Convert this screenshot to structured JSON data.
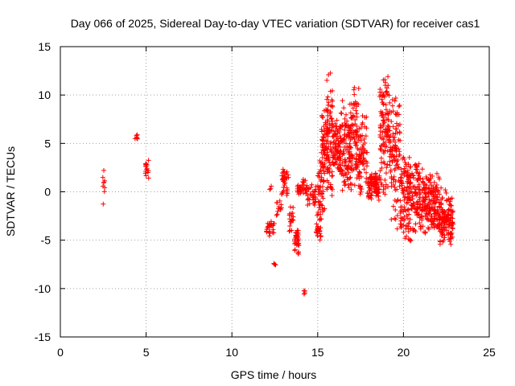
{
  "chart_data": {
    "type": "scatter",
    "title": "Day 066 of 2025, Sidereal Day-to-day VTEC variation (SDTVAR) for receiver cas1",
    "xlabel": "GPS time / hours",
    "ylabel": "SDTVAR / TECUs",
    "xlim": [
      0,
      25
    ],
    "ylim": [
      -15,
      15
    ],
    "xticks": [
      0,
      5,
      10,
      15,
      20,
      25
    ],
    "yticks": [
      -15,
      -10,
      -5,
      0,
      5,
      10,
      15
    ],
    "grid": true,
    "marker": "plus",
    "color": "#ff0000",
    "clusters": [
      {
        "name": "c1",
        "x_range": [
          2.45,
          2.6
        ],
        "y_range": [
          -1.9,
          3.2
        ],
        "count": 9
      },
      {
        "name": "c2",
        "x_range": [
          4.35,
          4.5
        ],
        "y_range": [
          5.3,
          6.0
        ],
        "count": 6
      },
      {
        "name": "c3",
        "x_range": [
          4.95,
          5.15
        ],
        "y_range": [
          1.2,
          3.8
        ],
        "count": 16
      },
      {
        "name": "c4",
        "x_range": [
          12.0,
          12.5
        ],
        "y_range": [
          -4.6,
          -3.0
        ],
        "count": 25
      },
      {
        "name": "c5",
        "x_range": [
          12.2,
          12.3
        ],
        "y_range": [
          0.0,
          0.8
        ],
        "count": 3
      },
      {
        "name": "c6",
        "x_range": [
          12.4,
          12.55
        ],
        "y_range": [
          -8.0,
          -7.0
        ],
        "count": 4
      },
      {
        "name": "c7",
        "x_range": [
          12.6,
          12.9
        ],
        "y_range": [
          -2.5,
          -0.8
        ],
        "count": 12
      },
      {
        "name": "c8",
        "x_range": [
          12.9,
          13.3
        ],
        "y_range": [
          -0.5,
          2.5
        ],
        "count": 40
      },
      {
        "name": "c9",
        "x_range": [
          13.3,
          13.6
        ],
        "y_range": [
          -4.5,
          -1.5
        ],
        "count": 20
      },
      {
        "name": "c10",
        "x_range": [
          13.6,
          13.9
        ],
        "y_range": [
          -6.8,
          -3.5
        ],
        "count": 35
      },
      {
        "name": "c11",
        "x_range": [
          13.8,
          14.1
        ],
        "y_range": [
          -0.5,
          0.8
        ],
        "count": 18
      },
      {
        "name": "c12",
        "x_range": [
          14.1,
          14.4
        ],
        "y_range": [
          -0.5,
          1.5
        ],
        "count": 18
      },
      {
        "name": "c13",
        "x_range": [
          14.2,
          14.35
        ],
        "y_range": [
          -10.6,
          -10.2
        ],
        "count": 4
      },
      {
        "name": "c14",
        "x_range": [
          14.4,
          14.9
        ],
        "y_range": [
          -1.5,
          0.8
        ],
        "count": 30
      },
      {
        "name": "c15",
        "x_range": [
          14.9,
          15.2
        ],
        "y_range": [
          -5.2,
          -2.0
        ],
        "count": 30
      },
      {
        "name": "c16",
        "x_range": [
          15.0,
          15.4
        ],
        "y_range": [
          -3.0,
          5.0
        ],
        "count": 50
      },
      {
        "name": "c17",
        "x_range": [
          15.2,
          15.6
        ],
        "y_range": [
          2.0,
          9.0
        ],
        "count": 60
      },
      {
        "name": "c18",
        "x_range": [
          15.5,
          15.9
        ],
        "y_range": [
          -0.8,
          12.7
        ],
        "count": 80
      },
      {
        "name": "c19",
        "x_range": [
          15.9,
          16.3
        ],
        "y_range": [
          2.0,
          8.0
        ],
        "count": 70
      },
      {
        "name": "c20",
        "x_range": [
          16.3,
          16.9
        ],
        "y_range": [
          0.0,
          10.0
        ],
        "count": 110
      },
      {
        "name": "c21",
        "x_range": [
          16.9,
          17.4
        ],
        "y_range": [
          0.0,
          11.5
        ],
        "count": 90
      },
      {
        "name": "c22",
        "x_range": [
          17.4,
          17.9
        ],
        "y_range": [
          -1.0,
          8.0
        ],
        "count": 70
      },
      {
        "name": "c23",
        "x_range": [
          17.9,
          18.6
        ],
        "y_range": [
          -1.0,
          2.0
        ],
        "count": 90
      },
      {
        "name": "c24",
        "x_range": [
          18.6,
          19.2
        ],
        "y_range": [
          -0.5,
          12.0
        ],
        "count": 110
      },
      {
        "name": "c25",
        "x_range": [
          19.2,
          19.8
        ],
        "y_range": [
          -4.0,
          10.5
        ],
        "count": 100
      },
      {
        "name": "c26",
        "x_range": [
          19.8,
          20.5
        ],
        "y_range": [
          -5.5,
          4.0
        ],
        "count": 120
      },
      {
        "name": "c27",
        "x_range": [
          20.5,
          21.3
        ],
        "y_range": [
          -4.5,
          3.0
        ],
        "count": 130
      },
      {
        "name": "c28",
        "x_range": [
          21.3,
          22.1
        ],
        "y_range": [
          -4.0,
          2.0
        ],
        "count": 140
      },
      {
        "name": "c29",
        "x_range": [
          22.1,
          22.9
        ],
        "y_range": [
          -5.5,
          0.5
        ],
        "count": 140
      }
    ]
  }
}
